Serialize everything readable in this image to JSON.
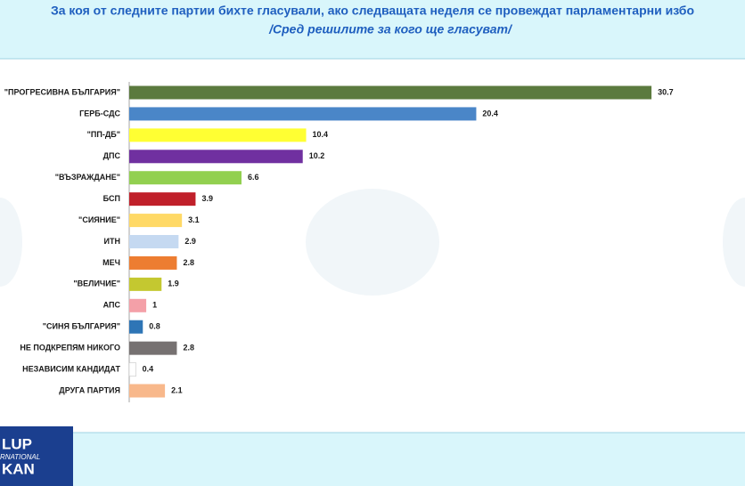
{
  "chart_data": {
    "type": "bar",
    "orientation": "horizontal",
    "title": "За коя от следните партии бихте  гласували,  ако следващата неделя се провеждат парламентарни избо",
    "subtitle": "/Сред решилите за кого ще гласуват/",
    "categories": [
      "\"ПРОГРЕСИВНА БЪЛГАРИЯ\"",
      "ГЕРБ-СДС",
      "\"ПП-ДБ\"",
      "ДПС",
      "\"ВЪЗРАЖДАНЕ\"",
      "БСП",
      "\"СИЯНИЕ\"",
      "ИТН",
      "МЕЧ",
      "\"ВЕЛИЧИЕ\"",
      "АПС",
      "\"СИНЯ БЪЛГАРИЯ\"",
      "НЕ ПОДКРЕПЯМ НИКОГО",
      "НЕЗАВИСИМ КАНДИДАТ",
      "ДРУГА ПАРТИЯ"
    ],
    "values": [
      30.7,
      20.4,
      10.4,
      10.2,
      6.6,
      3.9,
      3.1,
      2.9,
      2.8,
      1.9,
      1,
      0.8,
      2.8,
      0.4,
      2.1
    ],
    "colors": [
      "#5b7a3e",
      "#4a86c8",
      "#ffff33",
      "#7030a0",
      "#92d050",
      "#c0202a",
      "#ffd966",
      "#c5d9f1",
      "#ed7d31",
      "#c4c830",
      "#f4a0a8",
      "#2e75b6",
      "#767171",
      "#ffffff",
      "#f8b88b"
    ]
  },
  "logo": [
    "LUP",
    "RNATIONAL",
    "KAN"
  ]
}
